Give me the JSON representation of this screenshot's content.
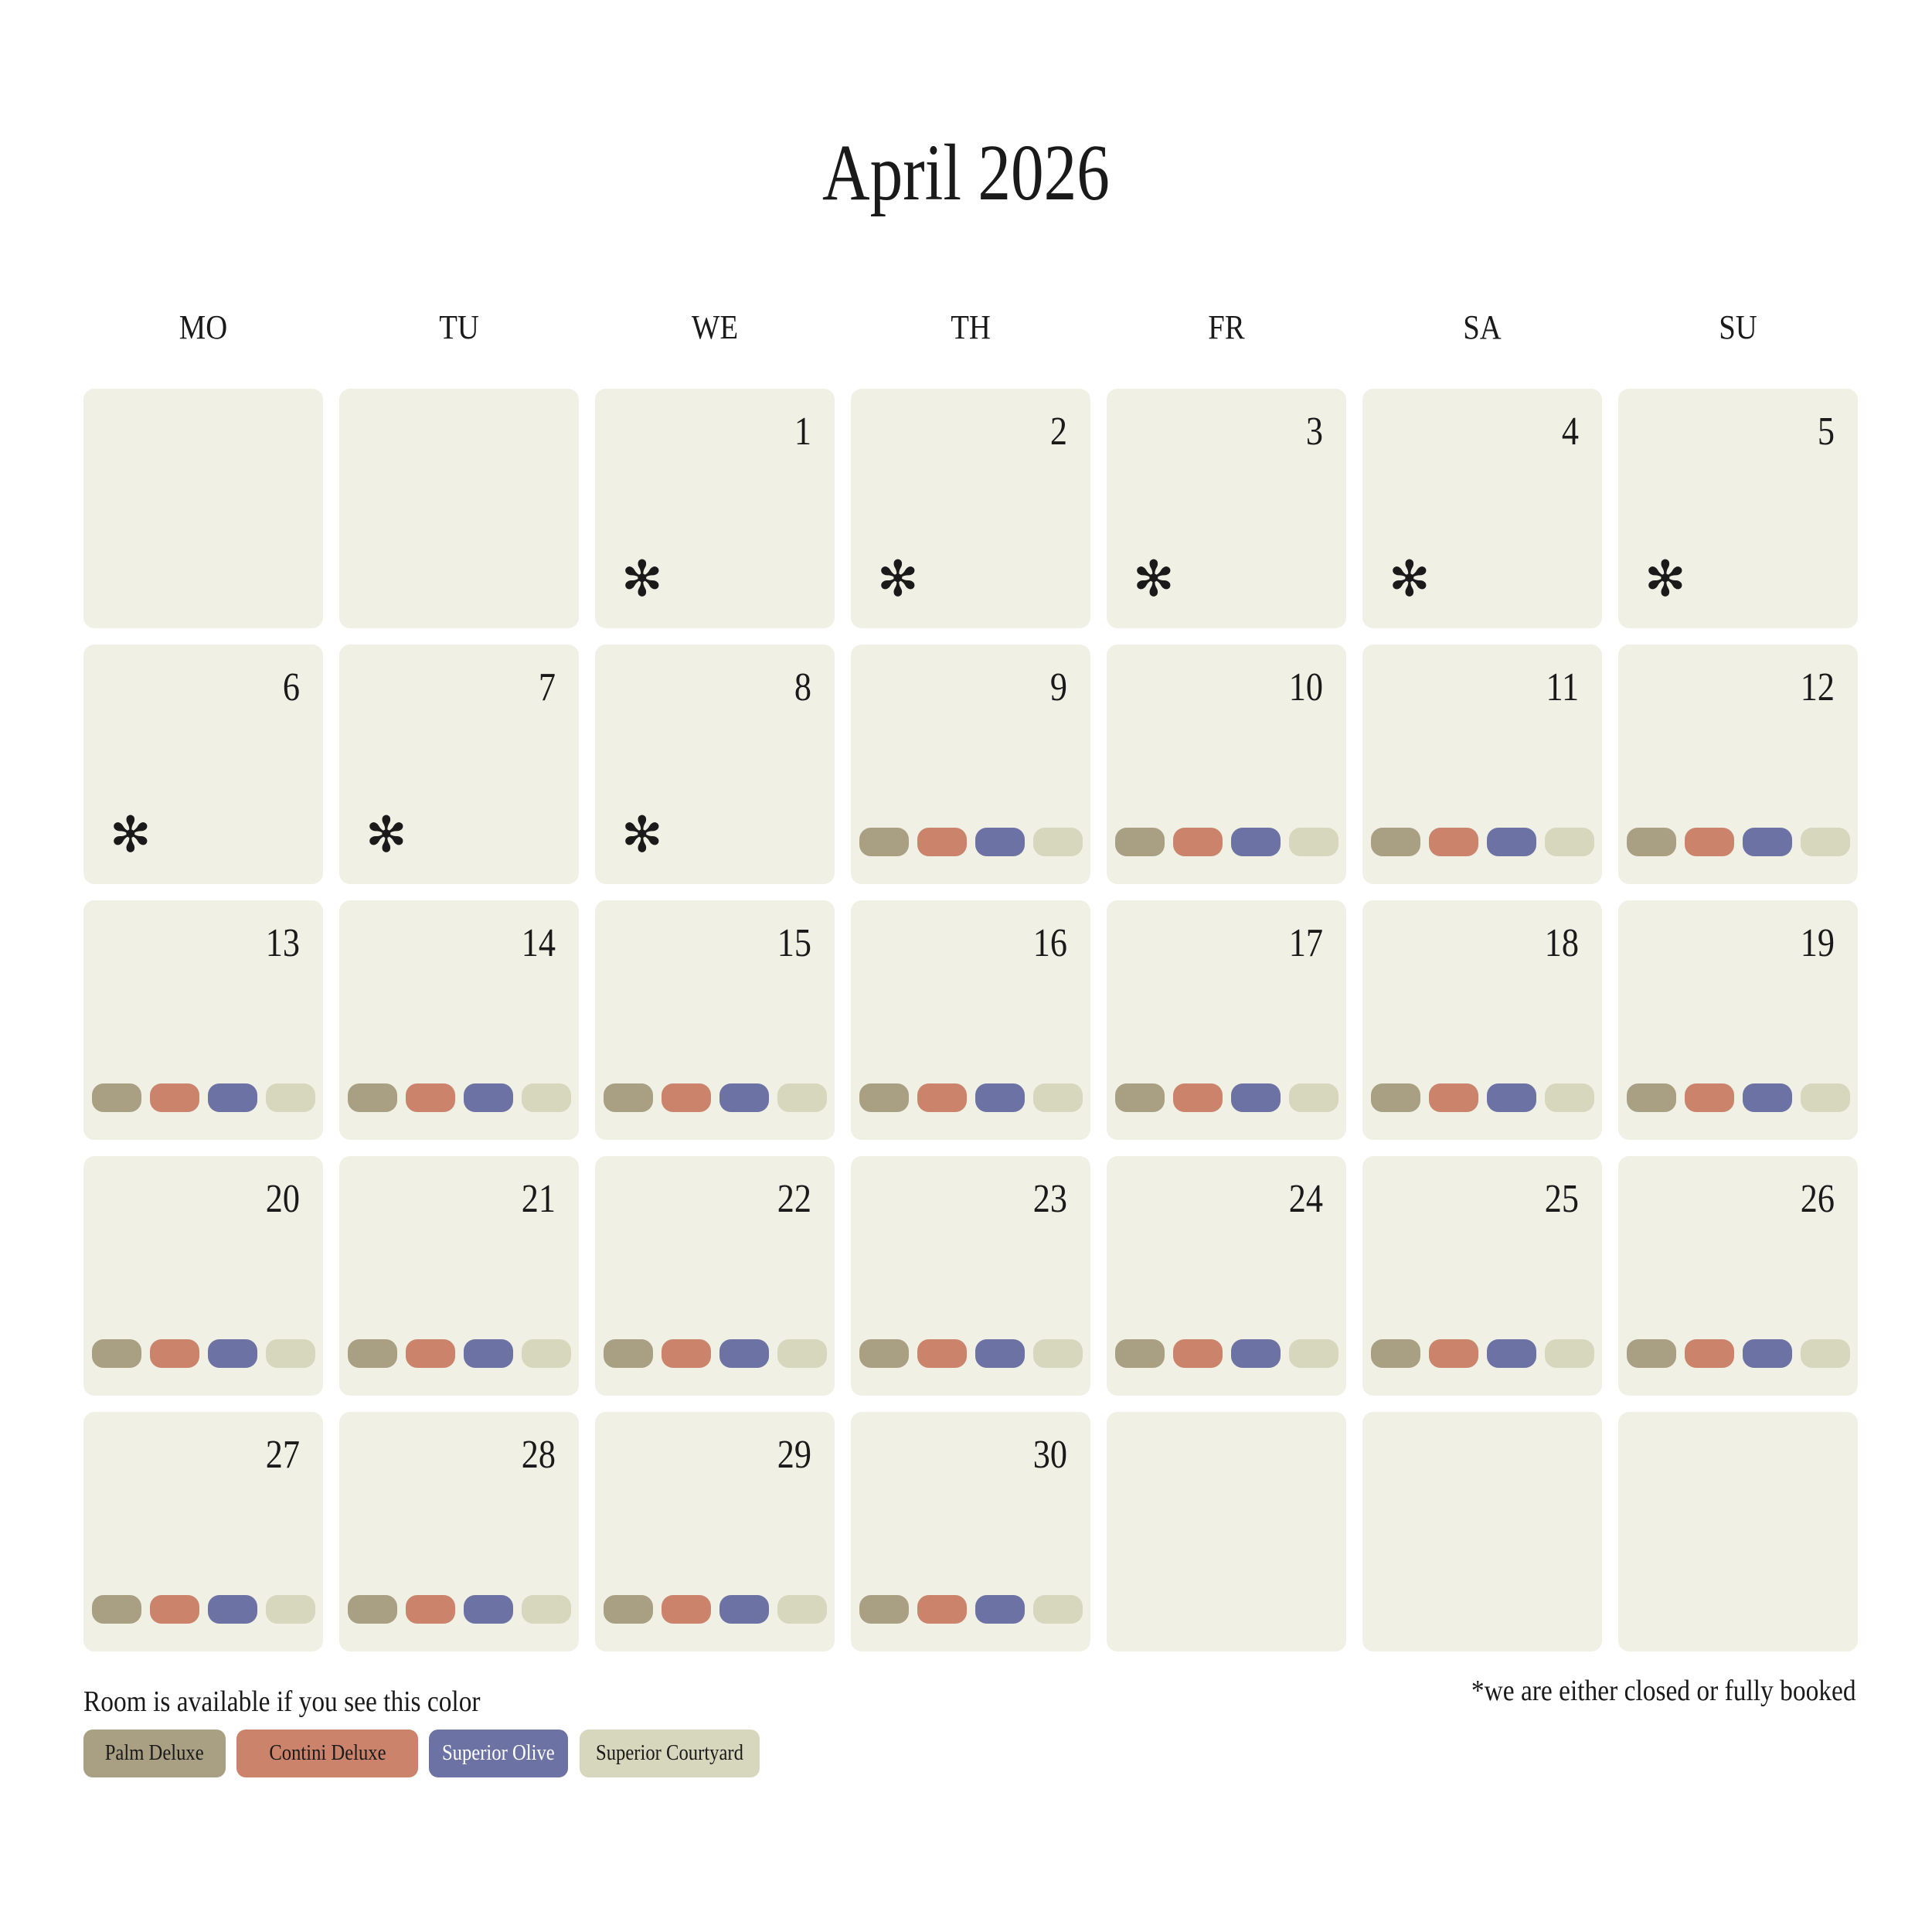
{
  "title": "April 2026",
  "weekdays": [
    "MO",
    "TU",
    "WE",
    "TH",
    "FR",
    "SA",
    "SU"
  ],
  "rooms": [
    {
      "name": "Palm Deluxe",
      "color": "#a9a084",
      "text_color": "#1a1a1a"
    },
    {
      "name": "Contini Deluxe",
      "color": "#cb846b",
      "text_color": "#1a1a1a"
    },
    {
      "name": "Superior Olive",
      "color": "#6c73a4",
      "text_color": "#ffffff"
    },
    {
      "name": "Superior Courtyard",
      "color": "#d7d7be",
      "text_color": "#1a1a1a"
    }
  ],
  "star_symbol": "✻",
  "leading_blank_days": 2,
  "days_in_month": 30,
  "closed_or_booked_days": [
    1,
    2,
    3,
    4,
    5,
    6,
    7,
    8
  ],
  "legend_title": "Room is available if you see this color",
  "note": "*we are either closed or fully booked"
}
